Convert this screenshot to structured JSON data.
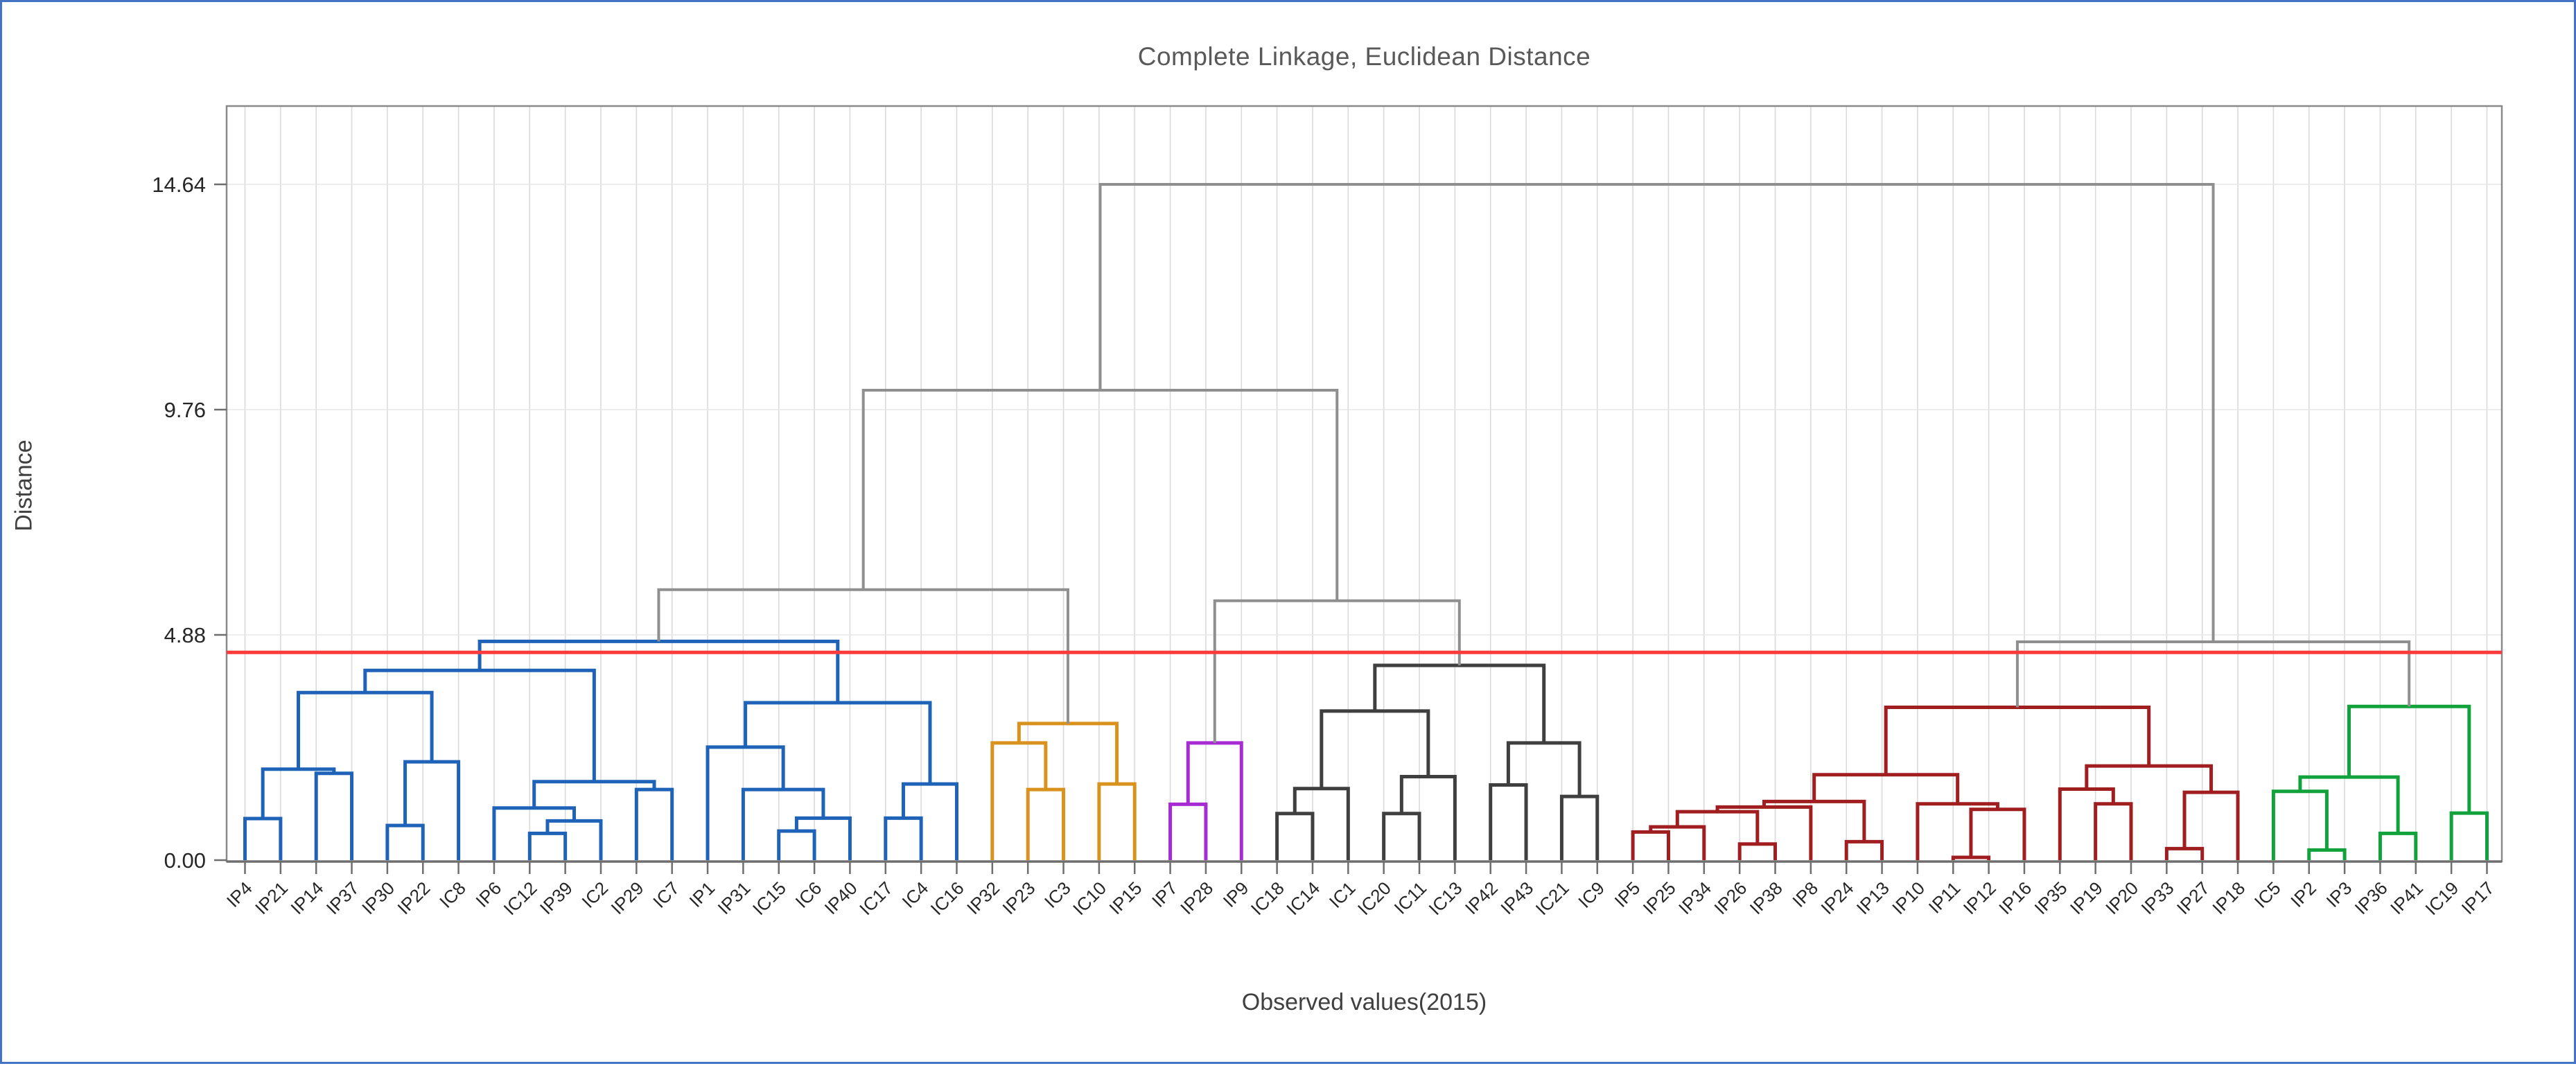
{
  "title": {
    "text": "Complete Linkage, Euclidean Distance"
  },
  "axes": {
    "y_label": "Distance",
    "x_label": "Observed values(2015)",
    "y_ticks": [
      {
        "value": 0,
        "label": "0.00"
      },
      {
        "value": 4.88,
        "label": "4.88"
      },
      {
        "value": 9.76,
        "label": "9.76"
      },
      {
        "value": 14.64,
        "label": "14.64"
      }
    ],
    "y_range": [
      0,
      16.35
    ],
    "grid": {
      "vertical": true,
      "horizontal": true
    }
  },
  "chart_data": {
    "type": "dendrogram",
    "title": "Complete Linkage, Euclidean Distance",
    "xlabel": "Observed values(2015)",
    "ylabel": "Distance",
    "ylim": [
      0,
      16.35
    ],
    "cutline": {
      "value": 4.5,
      "color": "#FB3B3B"
    },
    "max_distance": 14.64,
    "leaves": [
      "IP4",
      "IP21",
      "IP14",
      "IP37",
      "IP30",
      "IP22",
      "IC8",
      "IP6",
      "IC12",
      "IP39",
      "IC2",
      "IP29",
      "IC7",
      "IP1",
      "IP31",
      "IC15",
      "IC6",
      "IP40",
      "IC17",
      "IC4",
      "IC16",
      "IP32",
      "IP23",
      "IC3",
      "IC10",
      "IP15",
      "IP7",
      "IP28",
      "IP9",
      "IC18",
      "IC14",
      "IC1",
      "IC20",
      "IC11",
      "IC13",
      "IP42",
      "IP43",
      "IC21",
      "IC9",
      "IP5",
      "IP25",
      "IP34",
      "IP26",
      "IP38",
      "IP8",
      "IP24",
      "IP13",
      "IP10",
      "IP11",
      "IP12",
      "IP16",
      "IP35",
      "IP19",
      "IP20",
      "IP33",
      "IP27",
      "IP18",
      "IC5",
      "IP2",
      "IP3",
      "IP36",
      "IP41",
      "IC19",
      "IP17"
    ],
    "palette": {
      "blue": "#1E63B8",
      "orange": "#D9921E",
      "purple": "#A62BD3",
      "charcoal": "#3F3F3F",
      "darkred": "#A01D20",
      "green": "#12A23C",
      "connector": "#8F8F8F"
    },
    "clusters": [
      {
        "color": "blue",
        "leaves_from": "IP4",
        "leaves_to": "IC16",
        "count": 21
      },
      {
        "color": "orange",
        "leaves_from": "IP32",
        "leaves_to": "IP15",
        "count": 5
      },
      {
        "color": "purple",
        "leaves_from": "IP7",
        "leaves_to": "IP9",
        "count": 3
      },
      {
        "color": "charcoal",
        "leaves_from": "IC18",
        "leaves_to": "IC9",
        "count": 10
      },
      {
        "color": "darkred",
        "leaves_from": "IP5",
        "leaves_to": "IP18",
        "count": 18
      },
      {
        "color": "green",
        "leaves_from": "IC5",
        "leaves_to": "IP17",
        "count": 7
      }
    ],
    "merges": [
      {
        "id": "M1",
        "left": "L0",
        "right": "L1",
        "height": 0.9,
        "color": "blue"
      },
      {
        "id": "M2",
        "left": "L2",
        "right": "L3",
        "height": 1.88,
        "color": "blue"
      },
      {
        "id": "M3",
        "left": "M1",
        "right": "M2",
        "height": 1.97,
        "color": "blue"
      },
      {
        "id": "M4",
        "left": "L4",
        "right": "L5",
        "height": 0.75,
        "color": "blue"
      },
      {
        "id": "M5",
        "left": "M4",
        "right": "L6",
        "height": 2.13,
        "color": "blue"
      },
      {
        "id": "M6",
        "left": "M3",
        "right": "M5",
        "height": 3.63,
        "color": "blue"
      },
      {
        "id": "M7",
        "left": "L8",
        "right": "L9",
        "height": 0.58,
        "color": "blue"
      },
      {
        "id": "M8",
        "left": "M7",
        "right": "L10",
        "height": 0.85,
        "color": "blue"
      },
      {
        "id": "M9",
        "left": "L7",
        "right": "M8",
        "height": 1.13,
        "color": "blue"
      },
      {
        "id": "M10",
        "left": "L11",
        "right": "L12",
        "height": 1.53,
        "color": "blue"
      },
      {
        "id": "M11",
        "left": "M9",
        "right": "M10",
        "height": 1.7,
        "color": "blue"
      },
      {
        "id": "M12",
        "left": "M6",
        "right": "M11",
        "height": 4.11,
        "color": "blue"
      },
      {
        "id": "M13",
        "left": "L15",
        "right": "L16",
        "height": 0.63,
        "color": "blue"
      },
      {
        "id": "M14",
        "left": "M13",
        "right": "L17",
        "height": 0.91,
        "color": "blue"
      },
      {
        "id": "M15",
        "left": "L14",
        "right": "M14",
        "height": 1.53,
        "color": "blue"
      },
      {
        "id": "M16",
        "left": "L13",
        "right": "M15",
        "height": 2.45,
        "color": "blue"
      },
      {
        "id": "M17",
        "left": "L18",
        "right": "L19",
        "height": 0.91,
        "color": "blue"
      },
      {
        "id": "M18",
        "left": "M17",
        "right": "L20",
        "height": 1.65,
        "color": "blue"
      },
      {
        "id": "M19",
        "left": "M16",
        "right": "M18",
        "height": 3.41,
        "color": "blue"
      },
      {
        "id": "M20",
        "left": "M12",
        "right": "M19",
        "height": 4.74,
        "color": "blue"
      },
      {
        "id": "M21",
        "left": "L22",
        "right": "L23",
        "height": 1.53,
        "color": "orange"
      },
      {
        "id": "M22",
        "left": "L21",
        "right": "M21",
        "height": 2.54,
        "color": "orange"
      },
      {
        "id": "M23",
        "left": "L24",
        "right": "L25",
        "height": 1.65,
        "color": "orange"
      },
      {
        "id": "M24",
        "left": "M22",
        "right": "M23",
        "height": 2.96,
        "color": "orange"
      },
      {
        "id": "M25",
        "left": "L26",
        "right": "L27",
        "height": 1.21,
        "color": "purple"
      },
      {
        "id": "M26",
        "left": "M25",
        "right": "L28",
        "height": 2.54,
        "color": "purple"
      },
      {
        "id": "M27",
        "left": "L29",
        "right": "L30",
        "height": 1.01,
        "color": "charcoal"
      },
      {
        "id": "M28",
        "left": "M27",
        "right": "L31",
        "height": 1.55,
        "color": "charcoal"
      },
      {
        "id": "M29",
        "left": "L32",
        "right": "L33",
        "height": 1.01,
        "color": "charcoal"
      },
      {
        "id": "M30",
        "left": "M29",
        "right": "L34",
        "height": 1.81,
        "color": "charcoal"
      },
      {
        "id": "M31",
        "left": "M28",
        "right": "M30",
        "height": 3.23,
        "color": "charcoal"
      },
      {
        "id": "M32",
        "left": "L35",
        "right": "L36",
        "height": 1.63,
        "color": "charcoal"
      },
      {
        "id": "M33",
        "left": "L37",
        "right": "L38",
        "height": 1.38,
        "color": "charcoal"
      },
      {
        "id": "M34",
        "left": "M32",
        "right": "M33",
        "height": 2.54,
        "color": "charcoal"
      },
      {
        "id": "M35",
        "left": "M31",
        "right": "M34",
        "height": 4.22,
        "color": "charcoal"
      },
      {
        "id": "M36",
        "left": "L39",
        "right": "L40",
        "height": 0.61,
        "color": "darkred"
      },
      {
        "id": "M37",
        "left": "M36",
        "right": "L41",
        "height": 0.72,
        "color": "darkred"
      },
      {
        "id": "M38",
        "left": "L42",
        "right": "L43",
        "height": 0.35,
        "color": "darkred"
      },
      {
        "id": "M39",
        "left": "M37",
        "right": "M38",
        "height": 1.05,
        "color": "darkred"
      },
      {
        "id": "M40",
        "left": "M39",
        "right": "L44",
        "height": 1.15,
        "color": "darkred"
      },
      {
        "id": "M41",
        "left": "L45",
        "right": "L46",
        "height": 0.4,
        "color": "darkred"
      },
      {
        "id": "M42",
        "left": "M40",
        "right": "M41",
        "height": 1.27,
        "color": "darkred"
      },
      {
        "id": "M43",
        "left": "L48",
        "right": "L49",
        "height": 0.06,
        "color": "darkred"
      },
      {
        "id": "M44",
        "left": "M43",
        "right": "L50",
        "height": 1.1,
        "color": "darkred"
      },
      {
        "id": "M45",
        "left": "L47",
        "right": "M44",
        "height": 1.22,
        "color": "darkred"
      },
      {
        "id": "M46",
        "left": "M42",
        "right": "M45",
        "height": 1.85,
        "color": "darkred"
      },
      {
        "id": "M47",
        "left": "L52",
        "right": "L53",
        "height": 1.22,
        "color": "darkred"
      },
      {
        "id": "M48",
        "left": "L51",
        "right": "M47",
        "height": 1.54,
        "color": "darkred"
      },
      {
        "id": "M49",
        "left": "L54",
        "right": "L55",
        "height": 0.25,
        "color": "darkred"
      },
      {
        "id": "M50",
        "left": "M49",
        "right": "L56",
        "height": 1.47,
        "color": "darkred"
      },
      {
        "id": "M51",
        "left": "M48",
        "right": "M50",
        "height": 2.04,
        "color": "darkred"
      },
      {
        "id": "M52",
        "left": "M46",
        "right": "M51",
        "height": 3.31,
        "color": "darkred"
      },
      {
        "id": "M53",
        "left": "L58",
        "right": "L59",
        "height": 0.22,
        "color": "green"
      },
      {
        "id": "M54",
        "left": "L57",
        "right": "M53",
        "height": 1.49,
        "color": "green"
      },
      {
        "id": "M55",
        "left": "L60",
        "right": "L61",
        "height": 0.58,
        "color": "green"
      },
      {
        "id": "M56",
        "left": "M54",
        "right": "M55",
        "height": 1.8,
        "color": "green"
      },
      {
        "id": "M57",
        "left": "L62",
        "right": "L63",
        "height": 1.02,
        "color": "green"
      },
      {
        "id": "M58",
        "left": "M56",
        "right": "M57",
        "height": 3.33,
        "color": "green"
      },
      {
        "id": "M59",
        "left": "M20",
        "right": "M24",
        "height": 5.86,
        "color": "connector"
      },
      {
        "id": "M60",
        "left": "M26",
        "right": "M35",
        "height": 5.62,
        "color": "connector"
      },
      {
        "id": "M61",
        "left": "M59",
        "right": "M60",
        "height": 10.18,
        "color": "connector"
      },
      {
        "id": "M62",
        "left": "M52",
        "right": "M58",
        "height": 4.73,
        "color": "connector"
      },
      {
        "id": "M63",
        "left": "M61",
        "right": "M62",
        "height": 14.64,
        "color": "connector"
      }
    ]
  },
  "style_colors": {
    "frame_border": "#4472C4",
    "plot_border": "#8A8A8A",
    "axis_line": "#6E6E6E",
    "grid_vertical": "#DADADA",
    "grid_horizontal": "#E7E7E7",
    "tick_text": "#262626",
    "title_text": "#595959"
  }
}
